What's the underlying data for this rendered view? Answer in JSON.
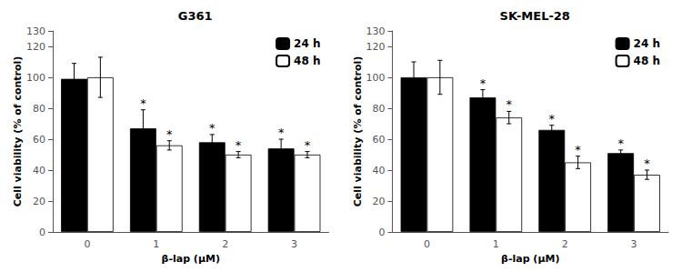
{
  "chart_data": [
    {
      "type": "bar",
      "title": "G361",
      "xlabel": "β-lap (μM)",
      "ylabel": "Cell viability (% of control)",
      "categories": [
        "0",
        "1",
        "2",
        "3"
      ],
      "series": [
        {
          "name": "24 h",
          "color": "#000000",
          "values": [
            99,
            67,
            58,
            54
          ],
          "errors": [
            10,
            12,
            5,
            6
          ],
          "annotations": [
            null,
            "*",
            "*",
            "*"
          ]
        },
        {
          "name": "48 h",
          "color": "#ffffff",
          "values": [
            100,
            56,
            50,
            50
          ],
          "errors": [
            13,
            3,
            2,
            2
          ],
          "annotations": [
            null,
            "*",
            "*",
            "*"
          ]
        }
      ],
      "ylim": [
        0,
        130
      ],
      "yticks": [
        0,
        20,
        40,
        60,
        80,
        100,
        120
      ],
      "grid": false,
      "legend": "upper right"
    },
    {
      "type": "bar",
      "title": "SK-MEL-28",
      "xlabel": "β-lap (μM)",
      "ylabel": "Cell viability (% of control)",
      "categories": [
        "0",
        "1",
        "2",
        "3"
      ],
      "series": [
        {
          "name": "24 h",
          "color": "#000000",
          "values": [
            100,
            87,
            66,
            51
          ],
          "errors": [
            10,
            5,
            3,
            2
          ],
          "annotations": [
            null,
            "*",
            "*",
            "*"
          ]
        },
        {
          "name": "48 h",
          "color": "#ffffff",
          "values": [
            100,
            74,
            45,
            37
          ],
          "errors": [
            11,
            4,
            4,
            3
          ],
          "annotations": [
            null,
            "*",
            "*",
            "*"
          ]
        }
      ],
      "ylim": [
        0,
        130
      ],
      "yticks": [
        0,
        20,
        40,
        60,
        80,
        100,
        120
      ],
      "grid": false,
      "legend": "upper right"
    }
  ]
}
